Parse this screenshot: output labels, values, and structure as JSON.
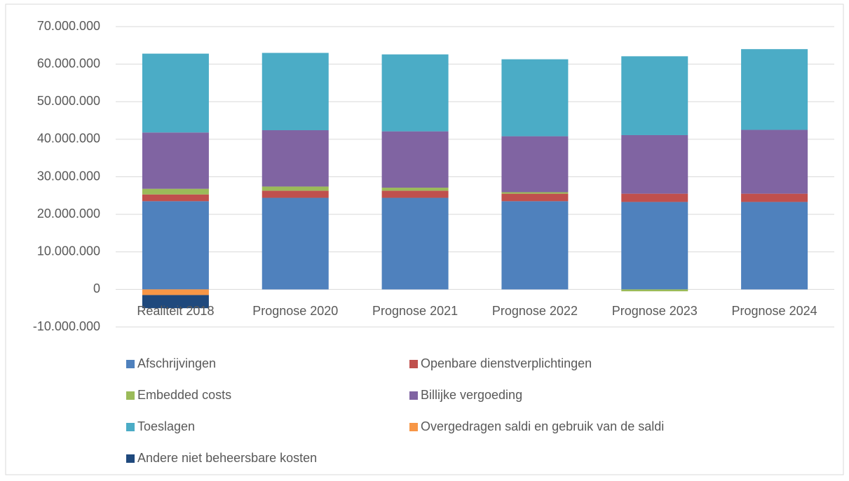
{
  "chart_data": {
    "type": "stacked_bar",
    "categories": [
      "Realiteit 2018",
      "Prognose 2020",
      "Prognose 2021",
      "Prognose 2022",
      "Prognose 2023",
      "Prognose 2024"
    ],
    "series": [
      {
        "name": "Afschrijvingen",
        "color": "#4f81bd",
        "values": [
          23500000,
          24400000,
          24400000,
          23500000,
          23300000,
          23300000
        ]
      },
      {
        "name": "Openbare dienstverplichtingen",
        "color": "#c0504d",
        "values": [
          1800000,
          1900000,
          1900000,
          2000000,
          2200000,
          2200000
        ]
      },
      {
        "name": "Embedded costs",
        "color": "#9bbb59",
        "values": [
          1500000,
          1100000,
          800000,
          400000,
          -500000,
          0
        ]
      },
      {
        "name": "Billijke vergoeding",
        "color": "#8064a2",
        "values": [
          15000000,
          15000000,
          15000000,
          14900000,
          15600000,
          17000000
        ]
      },
      {
        "name": "Toeslagen",
        "color": "#4bacc6",
        "values": [
          21000000,
          20600000,
          20500000,
          20500000,
          21000000,
          21500000
        ]
      },
      {
        "name": "Overgedragen saldi en gebruik van de saldi",
        "color": "#f79646",
        "values": [
          -1500000,
          0,
          0,
          0,
          0,
          0
        ]
      },
      {
        "name": "Andere niet beheersbare kosten",
        "color": "#1f497d",
        "values": [
          -3500000,
          0,
          0,
          0,
          0,
          0
        ]
      }
    ],
    "ylim": [
      -10000000,
      70000000
    ],
    "yticks": [
      {
        "value": -10000000,
        "label": "-10.000.000"
      },
      0,
      {
        "value": 10000000,
        "label": "10.000.000"
      },
      {
        "value": 20000000,
        "label": "20.000.000"
      },
      {
        "value": 30000000,
        "label": "30.000.000"
      },
      {
        "value": 40000000,
        "label": "40.000.000"
      },
      {
        "value": 50000000,
        "label": "50.000.000"
      },
      {
        "value": 60000000,
        "label": "60.000.000"
      },
      {
        "value": 70000000,
        "label": "70.000.000"
      }
    ],
    "grid": true
  }
}
